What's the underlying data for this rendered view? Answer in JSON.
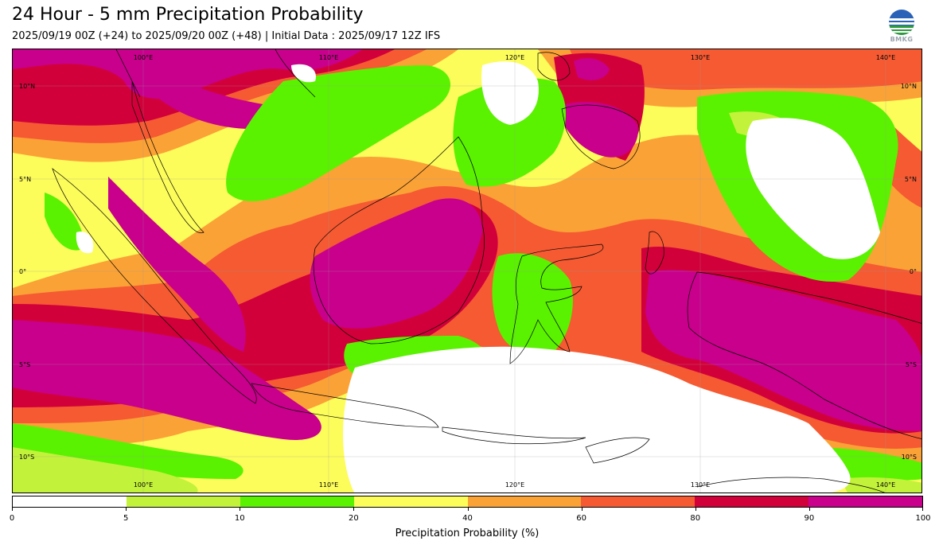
{
  "header": {
    "title": "24 Hour - 5 mm Precipitation Probability",
    "subtitle": "2025/09/19 00Z (+24) to 2025/09/20 00Z (+48) | Initial Data : 2025/09/17 12Z IFS",
    "logo_text": "BMKG"
  },
  "map": {
    "lon_labels_top": [
      "100°E",
      "110°E",
      "120°E",
      "130°E",
      "140°E"
    ],
    "lon_labels_bottom": [
      "100°E",
      "110°E",
      "120°E",
      "130°E",
      "140°E"
    ],
    "lat_labels_left": [
      "10°N",
      "5°N",
      "0°",
      "5°S",
      "10°S"
    ],
    "lat_labels_right": [
      "10°N",
      "5°N",
      "0°",
      "5°S",
      "10°S"
    ],
    "colors": {
      "c0_5": "#ffffff",
      "c5_10": "#c3f23a",
      "c10_20": "#5af200",
      "c20_40": "#fcfc5a",
      "c40_60": "#fba236",
      "c60_80": "#f55a32",
      "c80_90": "#d2003a",
      "c90_100": "#c8008c"
    }
  },
  "colorbar": {
    "title": "Precipitation Probability (%)",
    "ticks": [
      "0",
      "5",
      "10",
      "20",
      "40",
      "60",
      "80",
      "90",
      "100"
    ],
    "colors": [
      "#ffffff",
      "#c3f23a",
      "#5af200",
      "#fcfc5a",
      "#fba236",
      "#f55a32",
      "#d2003a",
      "#c8008c"
    ]
  }
}
